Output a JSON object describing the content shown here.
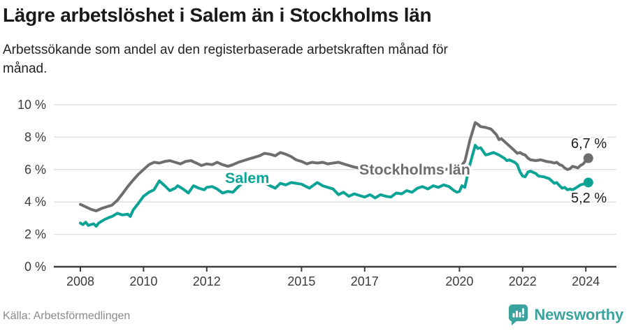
{
  "header": {
    "title": "Lägre arbetslöshet i Salem än i Stockholms län",
    "subtitle_line1": "Arbetssökande som andel av den registerbaserade arbetskraften månad för",
    "subtitle_line2": "månad."
  },
  "chart_data": {
    "type": "line",
    "title": "Lägre arbetslöshet i Salem än i Stockholms län",
    "subtitle": "Arbetssökande som andel av den registerbaserade arbetskraften månad för månad.",
    "xlabel": "",
    "ylabel": "",
    "ylim": [
      0,
      10
    ],
    "xlim": [
      2008,
      2024.35
    ],
    "grid": true,
    "legend_position": "inline-labels",
    "y_ticks": [
      {
        "value": 0,
        "label": "0 %"
      },
      {
        "value": 2,
        "label": "2 %"
      },
      {
        "value": 4,
        "label": "4 %"
      },
      {
        "value": 6,
        "label": "6 %"
      },
      {
        "value": 8,
        "label": "8 %"
      },
      {
        "value": 10,
        "label": "10 %"
      }
    ],
    "x_ticks": [
      {
        "value": 2008,
        "label": "2008"
      },
      {
        "value": 2010,
        "label": "2010"
      },
      {
        "value": 2012,
        "label": "2012"
      },
      {
        "value": 2015,
        "label": "2015"
      },
      {
        "value": 2017,
        "label": "2017"
      },
      {
        "value": 2020,
        "label": "2020"
      },
      {
        "value": 2022,
        "label": "2022"
      },
      {
        "value": 2024,
        "label": "2024"
      }
    ],
    "series": [
      {
        "name": "Stockholms län",
        "color": "#6e6e6e",
        "end_label": "6,7 %",
        "end_value": 6.7,
        "points": [
          [
            2008.0,
            3.85
          ],
          [
            2008.17,
            3.7
          ],
          [
            2008.33,
            3.55
          ],
          [
            2008.5,
            3.45
          ],
          [
            2008.67,
            3.6
          ],
          [
            2008.83,
            3.7
          ],
          [
            2009.0,
            3.8
          ],
          [
            2009.17,
            4.1
          ],
          [
            2009.33,
            4.5
          ],
          [
            2009.5,
            4.95
          ],
          [
            2009.67,
            5.35
          ],
          [
            2009.83,
            5.7
          ],
          [
            2010.0,
            6.0
          ],
          [
            2010.17,
            6.3
          ],
          [
            2010.33,
            6.45
          ],
          [
            2010.5,
            6.4
          ],
          [
            2010.67,
            6.5
          ],
          [
            2010.83,
            6.55
          ],
          [
            2011.0,
            6.45
          ],
          [
            2011.17,
            6.35
          ],
          [
            2011.33,
            6.5
          ],
          [
            2011.5,
            6.55
          ],
          [
            2011.67,
            6.4
          ],
          [
            2011.83,
            6.25
          ],
          [
            2012.0,
            6.35
          ],
          [
            2012.17,
            6.3
          ],
          [
            2012.33,
            6.45
          ],
          [
            2012.5,
            6.3
          ],
          [
            2012.67,
            6.2
          ],
          [
            2012.83,
            6.3
          ],
          [
            2013.0,
            6.45
          ],
          [
            2013.17,
            6.55
          ],
          [
            2013.33,
            6.65
          ],
          [
            2013.5,
            6.75
          ],
          [
            2013.67,
            6.85
          ],
          [
            2013.83,
            7.0
          ],
          [
            2014.0,
            6.95
          ],
          [
            2014.17,
            6.85
          ],
          [
            2014.33,
            7.05
          ],
          [
            2014.5,
            6.95
          ],
          [
            2014.67,
            6.8
          ],
          [
            2014.83,
            6.6
          ],
          [
            2015.0,
            6.5
          ],
          [
            2015.17,
            6.35
          ],
          [
            2015.33,
            6.45
          ],
          [
            2015.5,
            6.4
          ],
          [
            2015.67,
            6.45
          ],
          [
            2015.83,
            6.35
          ],
          [
            2016.0,
            6.4
          ],
          [
            2016.17,
            6.45
          ],
          [
            2016.33,
            6.35
          ],
          [
            2016.5,
            6.25
          ],
          [
            2016.67,
            6.15
          ],
          [
            2016.83,
            6.1
          ],
          [
            2017.0,
            6.15
          ],
          [
            2017.17,
            6.05
          ],
          [
            2017.33,
            6.0
          ],
          [
            2017.5,
            5.95
          ],
          [
            2017.67,
            6.0
          ],
          [
            2017.83,
            5.95
          ],
          [
            2018.0,
            5.9
          ],
          [
            2018.25,
            5.85
          ],
          [
            2018.5,
            5.9
          ],
          [
            2018.75,
            5.95
          ],
          [
            2019.0,
            5.9
          ],
          [
            2019.25,
            5.95
          ],
          [
            2019.5,
            6.0
          ],
          [
            2019.75,
            6.05
          ],
          [
            2020.0,
            6.1
          ],
          [
            2020.17,
            6.5
          ],
          [
            2020.33,
            7.8
          ],
          [
            2020.5,
            8.9
          ],
          [
            2020.58,
            8.8
          ],
          [
            2020.67,
            8.65
          ],
          [
            2020.83,
            8.6
          ],
          [
            2021.0,
            8.5
          ],
          [
            2021.17,
            8.15
          ],
          [
            2021.25,
            7.85
          ],
          [
            2021.33,
            7.9
          ],
          [
            2021.5,
            7.6
          ],
          [
            2021.67,
            7.3
          ],
          [
            2021.83,
            7.0
          ],
          [
            2021.92,
            7.05
          ],
          [
            2022.0,
            6.95
          ],
          [
            2022.08,
            6.9
          ],
          [
            2022.17,
            6.7
          ],
          [
            2022.25,
            6.6
          ],
          [
            2022.42,
            6.55
          ],
          [
            2022.58,
            6.6
          ],
          [
            2022.75,
            6.5
          ],
          [
            2022.92,
            6.45
          ],
          [
            2023.0,
            6.4
          ],
          [
            2023.08,
            6.45
          ],
          [
            2023.17,
            6.3
          ],
          [
            2023.25,
            6.25
          ],
          [
            2023.33,
            6.1
          ],
          [
            2023.42,
            6.0
          ],
          [
            2023.5,
            6.05
          ],
          [
            2023.58,
            6.2
          ],
          [
            2023.67,
            6.15
          ],
          [
            2023.75,
            6.1
          ],
          [
            2023.83,
            6.25
          ],
          [
            2023.92,
            6.35
          ],
          [
            2024.0,
            6.55
          ],
          [
            2024.08,
            6.7
          ]
        ]
      },
      {
        "name": "Salem",
        "color": "#0aa396",
        "end_label": "5,2 %",
        "end_value": 5.2,
        "points": [
          [
            2008.0,
            2.7
          ],
          [
            2008.08,
            2.6
          ],
          [
            2008.17,
            2.75
          ],
          [
            2008.25,
            2.55
          ],
          [
            2008.42,
            2.65
          ],
          [
            2008.5,
            2.5
          ],
          [
            2008.58,
            2.7
          ],
          [
            2008.75,
            2.9
          ],
          [
            2008.92,
            3.05
          ],
          [
            2009.0,
            3.1
          ],
          [
            2009.17,
            3.3
          ],
          [
            2009.33,
            3.2
          ],
          [
            2009.5,
            3.25
          ],
          [
            2009.58,
            3.1
          ],
          [
            2009.67,
            3.5
          ],
          [
            2009.83,
            3.9
          ],
          [
            2010.0,
            4.35
          ],
          [
            2010.17,
            4.6
          ],
          [
            2010.33,
            4.75
          ],
          [
            2010.5,
            5.3
          ],
          [
            2010.67,
            5.0
          ],
          [
            2010.83,
            4.7
          ],
          [
            2011.0,
            4.85
          ],
          [
            2011.08,
            5.0
          ],
          [
            2011.25,
            4.8
          ],
          [
            2011.42,
            4.55
          ],
          [
            2011.58,
            5.0
          ],
          [
            2011.75,
            4.85
          ],
          [
            2011.92,
            4.75
          ],
          [
            2012.0,
            4.9
          ],
          [
            2012.17,
            4.95
          ],
          [
            2012.33,
            4.8
          ],
          [
            2012.5,
            4.55
          ],
          [
            2012.67,
            4.65
          ],
          [
            2012.83,
            4.6
          ],
          [
            2013.0,
            4.95
          ],
          [
            2013.17,
            5.2
          ],
          [
            2013.33,
            5.45
          ],
          [
            2013.5,
            5.3
          ],
          [
            2013.67,
            5.4
          ],
          [
            2013.83,
            5.2
          ],
          [
            2014.0,
            5.0
          ],
          [
            2014.17,
            4.85
          ],
          [
            2014.33,
            5.15
          ],
          [
            2014.5,
            5.05
          ],
          [
            2014.67,
            5.2
          ],
          [
            2014.83,
            5.15
          ],
          [
            2015.0,
            5.1
          ],
          [
            2015.25,
            4.85
          ],
          [
            2015.5,
            5.2
          ],
          [
            2015.67,
            5.0
          ],
          [
            2015.83,
            4.9
          ],
          [
            2016.0,
            4.8
          ],
          [
            2016.17,
            4.45
          ],
          [
            2016.33,
            4.6
          ],
          [
            2016.5,
            4.35
          ],
          [
            2016.67,
            4.5
          ],
          [
            2016.83,
            4.4
          ],
          [
            2017.0,
            4.3
          ],
          [
            2017.17,
            4.45
          ],
          [
            2017.33,
            4.25
          ],
          [
            2017.5,
            4.45
          ],
          [
            2017.67,
            4.35
          ],
          [
            2017.83,
            4.3
          ],
          [
            2018.0,
            4.55
          ],
          [
            2018.17,
            4.5
          ],
          [
            2018.33,
            4.7
          ],
          [
            2018.5,
            4.6
          ],
          [
            2018.67,
            4.85
          ],
          [
            2018.83,
            4.95
          ],
          [
            2019.0,
            4.8
          ],
          [
            2019.17,
            5.0
          ],
          [
            2019.33,
            4.9
          ],
          [
            2019.5,
            5.05
          ],
          [
            2019.67,
            4.95
          ],
          [
            2019.83,
            4.7
          ],
          [
            2019.92,
            4.6
          ],
          [
            2020.0,
            4.65
          ],
          [
            2020.08,
            5.0
          ],
          [
            2020.17,
            4.9
          ],
          [
            2020.33,
            6.3
          ],
          [
            2020.5,
            7.5
          ],
          [
            2020.58,
            7.3
          ],
          [
            2020.67,
            7.35
          ],
          [
            2020.83,
            6.9
          ],
          [
            2020.92,
            6.95
          ],
          [
            2021.08,
            7.05
          ],
          [
            2021.25,
            6.9
          ],
          [
            2021.42,
            6.7
          ],
          [
            2021.5,
            6.55
          ],
          [
            2021.58,
            6.6
          ],
          [
            2021.75,
            6.45
          ],
          [
            2021.83,
            6.3
          ],
          [
            2021.92,
            5.85
          ],
          [
            2022.0,
            5.6
          ],
          [
            2022.08,
            5.55
          ],
          [
            2022.17,
            5.85
          ],
          [
            2022.25,
            5.9
          ],
          [
            2022.42,
            5.75
          ],
          [
            2022.5,
            5.6
          ],
          [
            2022.67,
            5.55
          ],
          [
            2022.83,
            5.45
          ],
          [
            2022.92,
            5.3
          ],
          [
            2023.0,
            5.15
          ],
          [
            2023.08,
            5.2
          ],
          [
            2023.17,
            5.0
          ],
          [
            2023.25,
            4.85
          ],
          [
            2023.33,
            4.9
          ],
          [
            2023.42,
            4.75
          ],
          [
            2023.5,
            4.8
          ],
          [
            2023.58,
            4.75
          ],
          [
            2023.67,
            4.85
          ],
          [
            2023.75,
            4.95
          ],
          [
            2023.83,
            5.05
          ],
          [
            2023.92,
            5.1
          ],
          [
            2024.0,
            5.15
          ],
          [
            2024.08,
            5.2
          ]
        ]
      }
    ]
  },
  "footer": {
    "source": "Källa: Arbetsförmedlingen",
    "brand_name": "Newsworthy",
    "logo_icon": "bar-chart-exclamation-bubble-icon"
  },
  "colors": {
    "salem_line": "#0aa396",
    "stockholm_line": "#6e6e6e",
    "brand_teal": "#3aa39d",
    "grid_line": "#dddddd",
    "axis": "#3c3c3c",
    "title_text": "#1a1a1a",
    "value_label_text": "#1c1c1c",
    "source_text": "#8a8a8a"
  }
}
